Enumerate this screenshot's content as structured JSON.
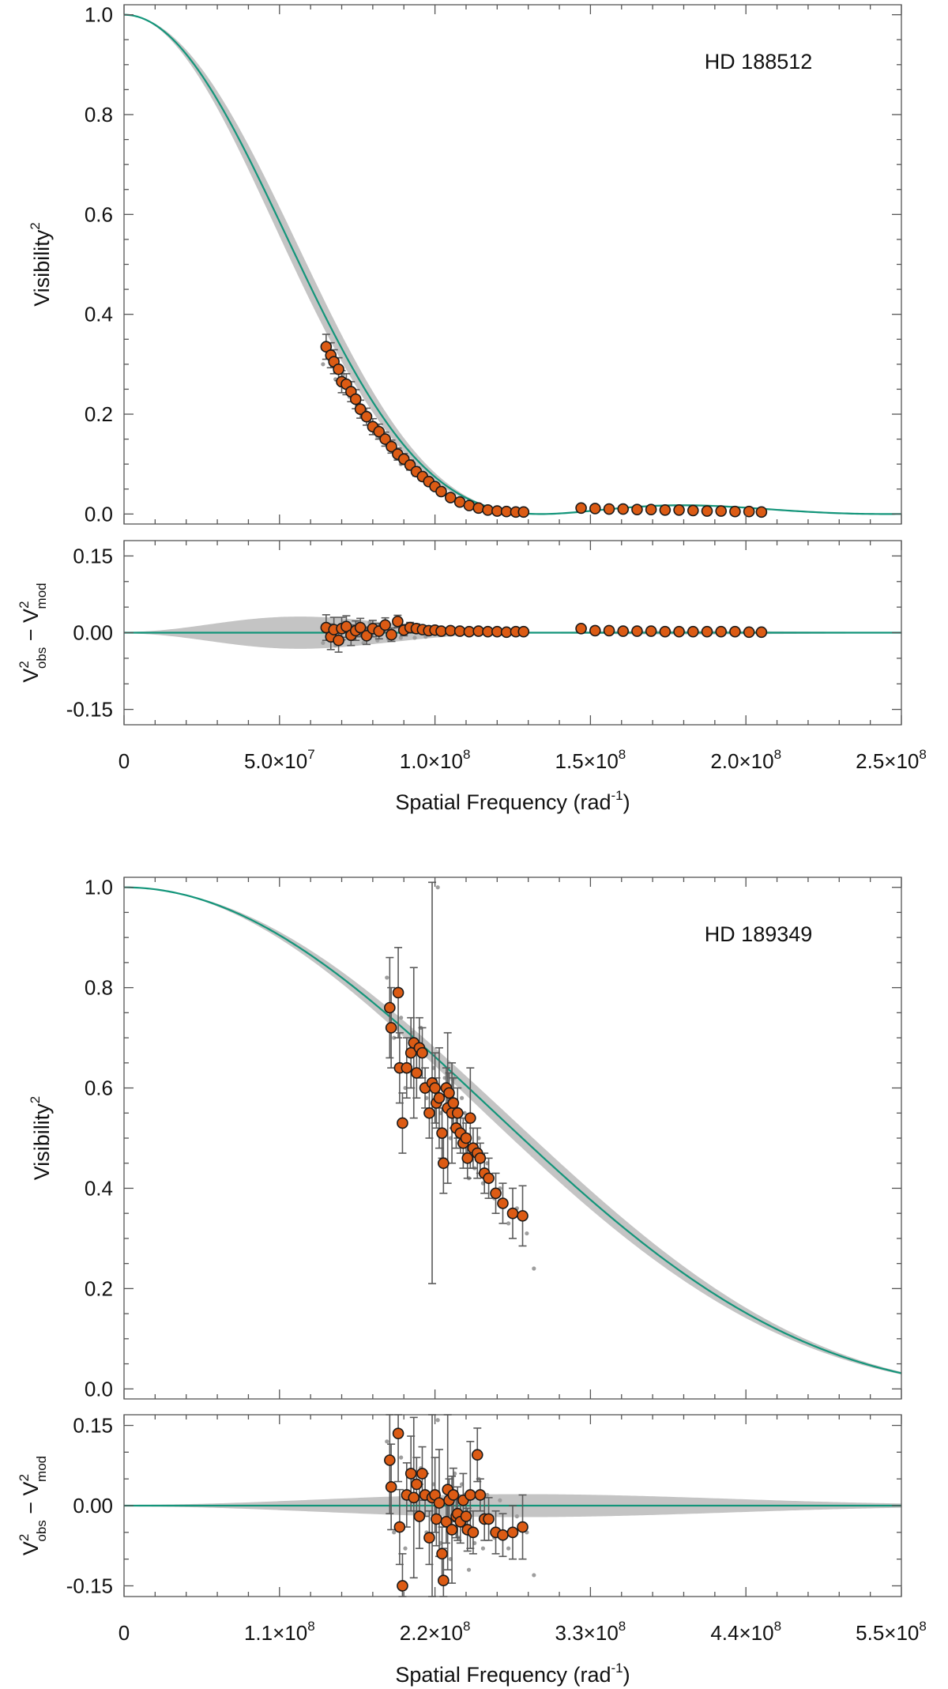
{
  "colors": {
    "model": "#13957a",
    "points": "#dc5b14",
    "error": "#5a5a5a",
    "band": "#c4c4c4"
  },
  "chart_data": [
    {
      "type": "scatter",
      "title": "HD 188512",
      "star_label": "HD 188512",
      "xlabel": "Spatial Frequency (rad",
      "xlabel_sup": "-1",
      "xlabel_close": ")",
      "ylabel": "Visibility",
      "ylabel_sup": "2",
      "resid_ylabel": {
        "v": "V",
        "sup": "2",
        "sub_obs": "obs",
        "minus": " − ",
        "sub_mod": "mod"
      },
      "xlim": [
        0,
        250000000
      ],
      "ylim": [
        -0.02,
        1.02
      ],
      "resid_ylim": [
        -0.18,
        0.18
      ],
      "x_ticks": [
        0,
        50000000,
        100000000,
        150000000,
        200000000,
        250000000
      ],
      "x_tick_labels": [
        {
          "m": "0",
          "e": ""
        },
        {
          "m": "5.0×10",
          "e": "7"
        },
        {
          "m": "1.0×10",
          "e": "8"
        },
        {
          "m": "1.5×10",
          "e": "8"
        },
        {
          "m": "2.0×10",
          "e": "8"
        },
        {
          "m": "2.5×10",
          "e": "8"
        }
      ],
      "y_ticks": [
        0.0,
        0.2,
        0.4,
        0.6,
        0.8,
        1.0
      ],
      "y_tick_labels": [
        "0.0",
        "0.2",
        "0.4",
        "0.6",
        "0.8",
        "1.0"
      ],
      "resid_ticks": [
        -0.15,
        0.0,
        0.15
      ],
      "resid_tick_labels": [
        "-0.15",
        "0.00",
        "0.15"
      ],
      "model": {
        "kind": "limb_darkened_disk",
        "zero_x": 134000000,
        "band_frac": 0.06
      },
      "points": {
        "x": [
          65000000,
          66500000,
          67500000,
          69000000,
          70000000,
          71500000,
          73000000,
          74500000,
          76000000,
          78000000,
          80000000,
          82000000,
          84000000,
          86000000,
          88000000,
          90000000,
          92000000,
          94000000,
          96000000,
          98000000,
          100000000,
          102000000,
          105000000,
          108000000,
          111000000,
          114000000,
          117000000,
          120000000,
          123000000,
          126000000,
          128500000,
          147000000,
          151500000,
          156000000,
          160500000,
          165000000,
          169500000,
          174000000,
          178500000,
          183000000,
          187500000,
          192000000,
          196500000,
          201000000,
          205000000
        ],
        "y": [
          0.335,
          0.318,
          0.305,
          0.29,
          0.265,
          0.26,
          0.245,
          0.23,
          0.21,
          0.195,
          0.175,
          0.165,
          0.15,
          0.135,
          0.12,
          0.11,
          0.098,
          0.085,
          0.075,
          0.065,
          0.055,
          0.045,
          0.033,
          0.024,
          0.017,
          0.012,
          0.008,
          0.006,
          0.005,
          0.004,
          0.004,
          0.012,
          0.011,
          0.01,
          0.01,
          0.009,
          0.009,
          0.008,
          0.008,
          0.007,
          0.006,
          0.006,
          0.005,
          0.005,
          0.004
        ],
        "yerr": [
          0.025,
          0.025,
          0.024,
          0.023,
          0.022,
          0.021,
          0.02,
          0.019,
          0.018,
          0.017,
          0.016,
          0.015,
          0.014,
          0.013,
          0.012,
          0.011,
          0.01,
          0.009,
          0.008,
          0.007,
          0.006,
          0.005,
          0.004,
          0.004,
          0.003,
          0.003,
          0.003,
          0.002,
          0.002,
          0.002,
          0.002,
          0.002,
          0.002,
          0.002,
          0.002,
          0.002,
          0.002,
          0.002,
          0.002,
          0.002,
          0.002,
          0.002,
          0.002,
          0.002,
          0.002
        ],
        "resid": [
          0.01,
          -0.008,
          0.006,
          -0.015,
          0.008,
          0.012,
          -0.005,
          0.004,
          0.01,
          -0.006,
          0.008,
          0.003,
          0.015,
          -0.004,
          0.022,
          0.005,
          0.01,
          0.008,
          0.006,
          0.004,
          0.005,
          0.003,
          0.004,
          0.003,
          0.002,
          0.003,
          0.002,
          0.002,
          0.001,
          0.002,
          0.002,
          0.008,
          0.004,
          0.004,
          0.003,
          0.003,
          0.003,
          0.002,
          0.002,
          0.002,
          0.002,
          0.002,
          0.002,
          0.001,
          0.001
        ]
      },
      "raw_points": {
        "x": [
          64000000,
          66000000,
          68000000,
          70500000,
          72500000,
          75000000,
          77000000,
          79000000,
          81500000,
          83000000,
          85000000,
          87500000,
          89000000,
          91000000,
          93500000,
          95500000,
          97000000,
          99500000,
          103000000,
          106000000,
          110000000,
          113000000
        ],
        "y": [
          0.3,
          0.31,
          0.27,
          0.28,
          0.235,
          0.22,
          0.19,
          0.185,
          0.155,
          0.16,
          0.13,
          0.125,
          0.1,
          0.105,
          0.08,
          0.072,
          0.07,
          0.052,
          0.04,
          0.03,
          0.02,
          0.014
        ],
        "resid": [
          -0.02,
          0.015,
          -0.025,
          0.02,
          -0.012,
          0.018,
          -0.02,
          0.02,
          -0.015,
          0.018,
          -0.012,
          0.012,
          -0.01,
          0.015,
          -0.01,
          0.01,
          -0.008,
          0.006,
          -0.004,
          0.004,
          -0.003,
          0.002
        ]
      }
    },
    {
      "type": "scatter",
      "title": "HD 189349",
      "star_label": "HD 189349",
      "xlabel": "Spatial Frequency (rad",
      "xlabel_sup": "-1",
      "xlabel_close": ")",
      "ylabel": "Visibility",
      "ylabel_sup": "2",
      "resid_ylabel": {
        "v": "V",
        "sup": "2",
        "sub_obs": "obs",
        "minus": " − ",
        "sub_mod": "mod"
      },
      "xlim": [
        0,
        550000000
      ],
      "ylim": [
        -0.02,
        1.02
      ],
      "resid_ylim": [
        -0.17,
        0.17
      ],
      "x_ticks": [
        0,
        110000000,
        220000000,
        330000000,
        440000000,
        550000000
      ],
      "x_tick_labels": [
        {
          "m": "0",
          "e": ""
        },
        {
          "m": "1.1×10",
          "e": "8"
        },
        {
          "m": "2.2×10",
          "e": "8"
        },
        {
          "m": "3.3×10",
          "e": "8"
        },
        {
          "m": "4.4×10",
          "e": "8"
        },
        {
          "m": "5.5×10",
          "e": "8"
        }
      ],
      "y_ticks": [
        0.0,
        0.2,
        0.4,
        0.6,
        0.8,
        1.0
      ],
      "y_tick_labels": [
        "0.0",
        "0.2",
        "0.4",
        "0.6",
        "0.8",
        "1.0"
      ],
      "resid_ticks": [
        -0.15,
        0.0,
        0.15
      ],
      "resid_tick_labels": [
        "-0.15",
        "0.00",
        "0.15"
      ],
      "model": {
        "kind": "limb_darkened_disk",
        "zero_x": 668000000,
        "band_frac": 0.04
      },
      "points": {
        "x": [
          188000000,
          189000000,
          194000000,
          195000000,
          197000000,
          200000000,
          203000000,
          205000000,
          207000000,
          209000000,
          211000000,
          213000000,
          216000000,
          218000000,
          220000000,
          221000000,
          223000000,
          225000000,
          226000000,
          228000000,
          229000000,
          230000000,
          232000000,
          233000000,
          235000000,
          236000000,
          238000000,
          240000000,
          242000000,
          243000000,
          245000000,
          247000000,
          250000000,
          252000000,
          255000000,
          258000000,
          263000000,
          268000000,
          275000000,
          282000000
        ],
        "y": [
          0.76,
          0.72,
          0.79,
          0.64,
          0.53,
          0.64,
          0.67,
          0.69,
          0.63,
          0.68,
          0.67,
          0.6,
          0.55,
          0.61,
          0.6,
          0.57,
          0.58,
          0.51,
          0.45,
          0.6,
          0.56,
          0.59,
          0.55,
          0.57,
          0.52,
          0.55,
          0.51,
          0.49,
          0.5,
          0.46,
          0.54,
          0.48,
          0.47,
          0.46,
          0.43,
          0.42,
          0.39,
          0.37,
          0.35,
          0.345
        ],
        "yerr": [
          0.1,
          0.08,
          0.09,
          0.07,
          0.06,
          0.06,
          0.07,
          0.15,
          0.05,
          0.06,
          0.05,
          0.04,
          0.05,
          0.4,
          0.07,
          0.05,
          0.1,
          0.05,
          0.06,
          0.04,
          0.15,
          0.04,
          0.1,
          0.05,
          0.04,
          0.05,
          0.04,
          0.05,
          0.03,
          0.04,
          0.1,
          0.04,
          0.05,
          0.03,
          0.04,
          0.04,
          0.04,
          0.04,
          0.05,
          0.06
        ],
        "resid": [
          0.085,
          0.035,
          0.135,
          -0.04,
          -0.15,
          0.02,
          0.06,
          0.015,
          0.04,
          -0.02,
          0.06,
          0.02,
          -0.06,
          0.015,
          0.02,
          -0.025,
          0.005,
          -0.09,
          -0.14,
          -0.03,
          0.03,
          0.01,
          -0.045,
          0.02,
          -0.02,
          -0.015,
          -0.03,
          0.01,
          -0.02,
          -0.045,
          0.02,
          -0.05,
          0.095,
          0.02,
          -0.025,
          -0.025,
          -0.05,
          -0.055,
          -0.05,
          -0.04
        ],
        "rerr": [
          0.1,
          0.08,
          0.09,
          0.07,
          0.06,
          0.06,
          0.07,
          0.15,
          0.05,
          0.06,
          0.05,
          0.04,
          0.05,
          0.4,
          0.07,
          0.05,
          0.1,
          0.05,
          0.06,
          0.04,
          0.15,
          0.04,
          0.1,
          0.05,
          0.04,
          0.05,
          0.04,
          0.05,
          0.03,
          0.04,
          0.1,
          0.04,
          0.05,
          0.03,
          0.04,
          0.04,
          0.04,
          0.04,
          0.05,
          0.06
        ]
      },
      "raw_points": {
        "x": [
          186000000,
          191000000,
          196000000,
          199000000,
          204000000,
          210000000,
          214000000,
          219000000,
          222000000,
          224000000,
          227000000,
          231000000,
          234000000,
          237000000,
          239000000,
          241000000,
          244000000,
          248000000,
          251000000,
          254000000,
          257000000,
          262000000,
          266000000,
          272000000,
          278000000,
          285000000,
          290000000
        ],
        "y": [
          0.82,
          0.7,
          0.74,
          0.6,
          0.71,
          0.72,
          0.58,
          0.64,
          1.0,
          0.55,
          0.62,
          0.5,
          0.62,
          0.49,
          0.58,
          0.55,
          0.42,
          0.44,
          0.5,
          0.41,
          0.45,
          0.38,
          0.4,
          0.33,
          0.36,
          0.31,
          0.24
        ],
        "resid": [
          0.12,
          -0.05,
          0.09,
          -0.08,
          0.05,
          0.07,
          -0.05,
          0.04,
          0.16,
          -0.07,
          0.03,
          -0.1,
          0.06,
          -0.06,
          0.04,
          0.02,
          -0.12,
          -0.07,
          0.05,
          -0.08,
          0.02,
          -0.06,
          0.01,
          -0.08,
          -0.02,
          -0.05,
          -0.13
        ]
      }
    }
  ]
}
